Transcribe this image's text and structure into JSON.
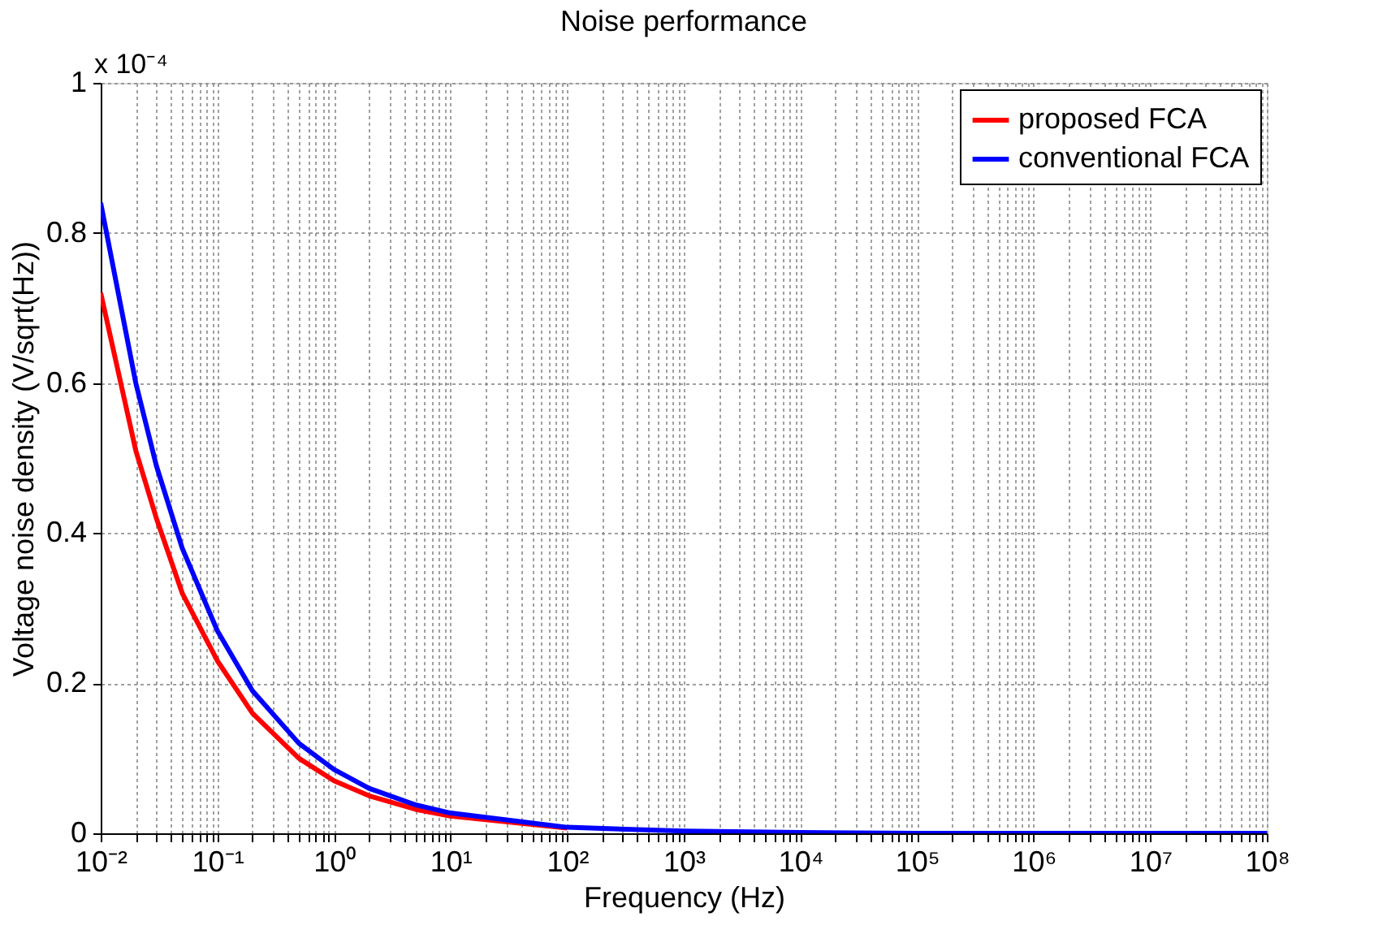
{
  "chart_data": {
    "type": "line",
    "title": "Noise performance",
    "xlabel": "Frequency (Hz)",
    "ylabel": "Voltage noise density (V/sqrt(Hz))",
    "annotations": [
      "x 10⁻⁴"
    ],
    "log": "x",
    "grid": true,
    "legend": "top right",
    "line_style": "solid",
    "marker": "none",
    "xlim": [
      0.01,
      100000000
    ],
    "ylim": [
      0,
      1
    ],
    "yticks": [
      0,
      0.2,
      0.4,
      0.6,
      0.8,
      1
    ],
    "xticks": [
      {
        "value": 0.01,
        "label": "10⁻²"
      },
      {
        "value": 0.02,
        "label": null
      },
      {
        "value": 0.03,
        "label": null
      },
      {
        "value": 0.04,
        "label": null
      },
      {
        "value": 0.05,
        "label": null
      },
      {
        "value": 0.06,
        "label": null
      },
      {
        "value": 0.07,
        "label": null
      },
      {
        "value": 0.08,
        "label": null
      },
      {
        "value": 0.09,
        "label": null
      },
      {
        "value": 0.1,
        "label": "10⁻¹"
      },
      {
        "value": 0.2,
        "label": null
      },
      {
        "value": 0.3,
        "label": null
      },
      {
        "value": 0.4,
        "label": null
      },
      {
        "value": 0.5,
        "label": null
      },
      {
        "value": 0.6,
        "label": null
      },
      {
        "value": 0.7,
        "label": null
      },
      {
        "value": 0.8,
        "label": null
      },
      {
        "value": 0.9,
        "label": null
      },
      {
        "value": 1,
        "label": "10⁰"
      },
      {
        "value": 2,
        "label": null
      },
      {
        "value": 3,
        "label": null
      },
      {
        "value": 4,
        "label": null
      },
      {
        "value": 5,
        "label": null
      },
      {
        "value": 6,
        "label": null
      },
      {
        "value": 7,
        "label": null
      },
      {
        "value": 8,
        "label": null
      },
      {
        "value": 9,
        "label": null
      },
      {
        "value": 10,
        "label": "10¹"
      },
      {
        "value": 20,
        "label": null
      },
      {
        "value": 30,
        "label": null
      },
      {
        "value": 40,
        "label": null
      },
      {
        "value": 50,
        "label": null
      },
      {
        "value": 60,
        "label": null
      },
      {
        "value": 70,
        "label": null
      },
      {
        "value": 80,
        "label": null
      },
      {
        "value": 90,
        "label": null
      },
      {
        "value": 100,
        "label": "10²"
      },
      {
        "value": 200,
        "label": null
      },
      {
        "value": 300,
        "label": null
      },
      {
        "value": 400,
        "label": null
      },
      {
        "value": 500,
        "label": null
      },
      {
        "value": 600,
        "label": null
      },
      {
        "value": 700,
        "label": null
      },
      {
        "value": 800,
        "label": null
      },
      {
        "value": 900,
        "label": null
      },
      {
        "value": 1000,
        "label": "10³"
      },
      {
        "value": 2000,
        "label": null
      },
      {
        "value": 3000,
        "label": null
      },
      {
        "value": 4000,
        "label": null
      },
      {
        "value": 5000,
        "label": null
      },
      {
        "value": 6000,
        "label": null
      },
      {
        "value": 7000,
        "label": null
      },
      {
        "value": 8000,
        "label": null
      },
      {
        "value": 9000,
        "label": null
      },
      {
        "value": 10000,
        "label": "10⁴"
      },
      {
        "value": 20000,
        "label": null
      },
      {
        "value": 30000,
        "label": null
      },
      {
        "value": 40000,
        "label": null
      },
      {
        "value": 50000,
        "label": null
      },
      {
        "value": 60000,
        "label": null
      },
      {
        "value": 70000,
        "label": null
      },
      {
        "value": 80000,
        "label": null
      },
      {
        "value": 90000,
        "label": null
      },
      {
        "value": 100000,
        "label": "10⁵"
      },
      {
        "value": 200000,
        "label": null
      },
      {
        "value": 300000,
        "label": null
      },
      {
        "value": 400000,
        "label": null
      },
      {
        "value": 500000,
        "label": null
      },
      {
        "value": 600000,
        "label": null
      },
      {
        "value": 700000,
        "label": null
      },
      {
        "value": 800000,
        "label": null
      },
      {
        "value": 900000,
        "label": null
      },
      {
        "value": 1000000,
        "label": "10⁶"
      },
      {
        "value": 2000000,
        "label": null
      },
      {
        "value": 3000000,
        "label": null
      },
      {
        "value": 4000000,
        "label": null
      },
      {
        "value": 5000000,
        "label": null
      },
      {
        "value": 6000000,
        "label": null
      },
      {
        "value": 7000000,
        "label": null
      },
      {
        "value": 8000000,
        "label": null
      },
      {
        "value": 9000000,
        "label": null
      },
      {
        "value": 10000000,
        "label": "10⁷"
      },
      {
        "value": 20000000,
        "label": null
      },
      {
        "value": 30000000,
        "label": null
      },
      {
        "value": 40000000,
        "label": null
      },
      {
        "value": 50000000,
        "label": null
      },
      {
        "value": 60000000,
        "label": null
      },
      {
        "value": 70000000,
        "label": null
      },
      {
        "value": 80000000,
        "label": null
      },
      {
        "value": 90000000,
        "label": null
      },
      {
        "value": 100000000,
        "label": "10⁸"
      }
    ],
    "x": [
      0.01,
      0.02,
      0.03,
      0.05,
      0.1,
      0.2,
      0.5,
      1,
      2,
      5,
      10,
      100,
      1000,
      10000,
      100000,
      1000000,
      10000000,
      100000000
    ],
    "series": [
      {
        "name": "proposed FCA",
        "color": "#ff0000",
        "values": [
          0.72,
          0.51,
          0.42,
          0.32,
          0.23,
          0.16,
          0.1,
          0.07,
          0.05,
          0.032,
          0.023,
          0.007,
          null,
          null,
          null,
          null,
          null,
          null
        ]
      },
      {
        "name": "conventional FCA",
        "color": "#0000ff",
        "values": [
          0.84,
          0.6,
          0.49,
          0.38,
          0.27,
          0.19,
          0.12,
          0.085,
          0.06,
          0.038,
          0.027,
          0.008,
          0.003,
          0.001,
          0,
          0,
          0,
          0
        ]
      }
    ]
  }
}
